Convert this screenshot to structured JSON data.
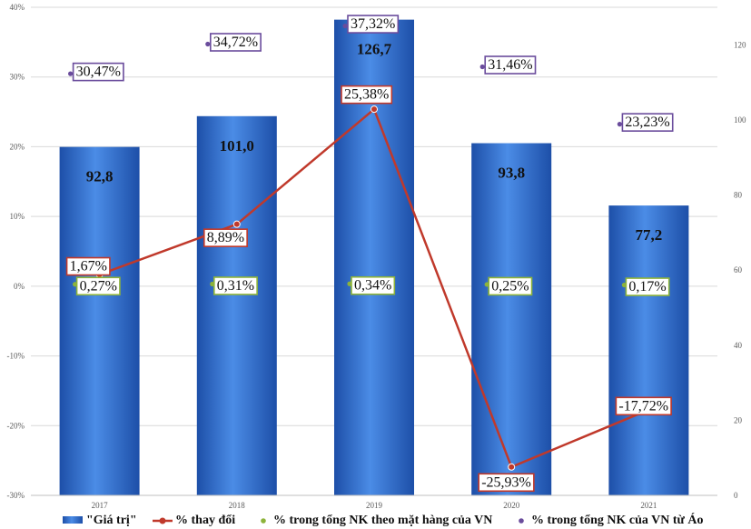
{
  "chart_data": {
    "type": "bar",
    "categories": [
      "2017",
      "2018",
      "2019",
      "2020",
      "2021"
    ],
    "series": [
      {
        "name": "\"Giá trị\"",
        "kind": "bar",
        "axis": "right",
        "values": [
          92.8,
          101.0,
          126.7,
          93.8,
          77.2
        ],
        "labels": [
          "92,8",
          "101,0",
          "126,7",
          "93,8",
          "77,2"
        ],
        "color": "#2f6fd0"
      },
      {
        "name": "% thay đổi",
        "kind": "line",
        "axis": "left",
        "values": [
          1.67,
          8.89,
          25.38,
          -25.93,
          -17.72
        ],
        "labels": [
          "1,67%",
          "8,89%",
          "25,38%",
          "-25,93%",
          "-17,72%"
        ],
        "color": "#c0392b"
      },
      {
        "name": "% trong tổng NK theo mặt hàng của VN",
        "kind": "marker",
        "axis": "left",
        "values": [
          0.27,
          0.31,
          0.34,
          0.25,
          0.17
        ],
        "labels": [
          "0,27%",
          "0,31%",
          "0,34%",
          "0,25%",
          "0,17%"
        ],
        "color": "#8db33a"
      },
      {
        "name": "% trong tổng NK của VN từ Áo",
        "kind": "marker",
        "axis": "left",
        "values": [
          30.47,
          34.72,
          37.32,
          31.46,
          23.23
        ],
        "labels": [
          "30,47%",
          "34,72%",
          "37,32%",
          "31,46%",
          "23,23%"
        ],
        "color": "#6a4c9c"
      }
    ],
    "left_axis": {
      "ylim": [
        -30,
        40
      ],
      "ticks": [
        "-30%",
        "-20%",
        "-10%",
        "0%",
        "10%",
        "20%",
        "30%",
        "40%"
      ],
      "tick_values": [
        -30,
        -20,
        -10,
        0,
        10,
        20,
        30,
        40
      ]
    },
    "right_axis": {
      "ylim": [
        0,
        130
      ],
      "ticks": [
        "0",
        "20",
        "40",
        "60",
        "80",
        "100",
        "120"
      ],
      "tick_values": [
        0,
        20,
        40,
        60,
        80,
        100,
        120
      ]
    },
    "grid": true,
    "legend_position": "bottom"
  }
}
